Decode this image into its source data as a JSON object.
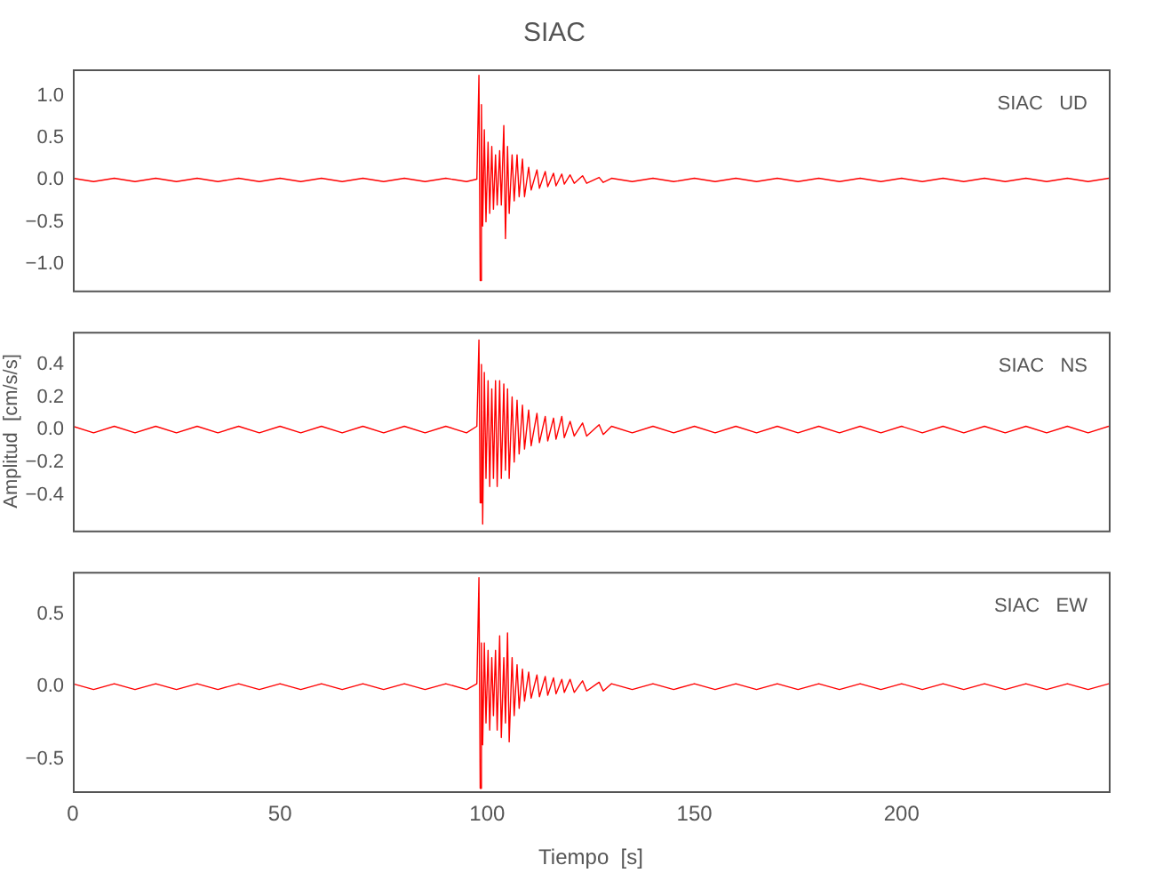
{
  "chart_data": [
    {
      "type": "line",
      "title": "SIAC",
      "annotations": [
        "SIAC   UD"
      ],
      "tick_labels": "y",
      "xlim": [
        0,
        250
      ],
      "xticks": [
        0,
        50,
        100,
        150,
        200
      ],
      "ylim": [
        -1.32,
        1.32
      ],
      "yticks": [
        {
          "value": -1,
          "label": "−1.0"
        },
        {
          "value": -0.5,
          "label": "−0.5"
        },
        {
          "value": 0,
          "label": "0.0"
        },
        {
          "value": 0.5,
          "label": "0.5"
        },
        {
          "value": 1,
          "label": "1.0"
        }
      ],
      "x": [
        0,
        5,
        10,
        15,
        20,
        25,
        30,
        35,
        40,
        45,
        50,
        55,
        60,
        65,
        70,
        75,
        80,
        85,
        90,
        95,
        97.5,
        98,
        98.3,
        98.6,
        98.9,
        99.3,
        99.7,
        100.2,
        100.6,
        101.1,
        101.5,
        102,
        102.4,
        103,
        103.4,
        104,
        104.4,
        104.9,
        105.3,
        106,
        106.5,
        107.2,
        107.7,
        108.5,
        109,
        110,
        110.6,
        112,
        112.6,
        114,
        114.6,
        116,
        116.6,
        118,
        118.6,
        120,
        121,
        123,
        124,
        127,
        128,
        130,
        135,
        140,
        145,
        150,
        155,
        160,
        165,
        170,
        175,
        180,
        185,
        190,
        195,
        200,
        205,
        210,
        215,
        220,
        225,
        230,
        235,
        240,
        245,
        250
      ],
      "series": [
        {
          "color": "#ff0000",
          "values": [
            0.02,
            -0.02,
            0.02,
            -0.02,
            0.02,
            -0.02,
            0.02,
            -0.02,
            0.02,
            -0.02,
            0.02,
            -0.02,
            0.02,
            -0.02,
            0.02,
            -0.02,
            0.02,
            -0.02,
            0.02,
            -0.02,
            0.01,
            1.25,
            -1.2,
            0.9,
            -0.55,
            0.6,
            -0.5,
            0.45,
            -0.4,
            0.4,
            -0.35,
            0.3,
            -0.3,
            0.35,
            -0.3,
            0.65,
            -0.7,
            0.4,
            -0.4,
            0.3,
            -0.25,
            0.3,
            -0.2,
            0.25,
            -0.2,
            0.15,
            -0.12,
            0.12,
            -0.1,
            0.1,
            -0.08,
            0.08,
            -0.07,
            0.07,
            -0.05,
            0.06,
            -0.04,
            0.05,
            -0.04,
            0.03,
            -0.03,
            0.02,
            -0.02,
            0.02,
            -0.02,
            0.02,
            -0.02,
            0.02,
            -0.02,
            0.02,
            -0.02,
            0.02,
            -0.02,
            0.02,
            -0.02,
            0.02,
            -0.02,
            0.02,
            -0.02,
            0.02,
            -0.02,
            0.02,
            -0.02,
            0.02,
            -0.02,
            0.02
          ]
        }
      ]
    },
    {
      "type": "line",
      "ylabel": "Amplitud  [cm/s/s]",
      "annotations": [
        "SIAC   NS"
      ],
      "tick_labels": "y",
      "xlim": [
        0,
        250
      ],
      "xticks": [
        0,
        50,
        100,
        150,
        200
      ],
      "ylim": [
        -0.62,
        0.6
      ],
      "yticks": [
        {
          "value": -0.4,
          "label": "−0.4"
        },
        {
          "value": -0.2,
          "label": "−0.2"
        },
        {
          "value": 0,
          "label": "0.0"
        },
        {
          "value": 0.2,
          "label": "0.2"
        },
        {
          "value": 0.4,
          "label": "0.4"
        }
      ],
      "x": [
        0,
        5,
        10,
        15,
        20,
        25,
        30,
        35,
        40,
        45,
        50,
        55,
        60,
        65,
        70,
        75,
        80,
        85,
        90,
        95,
        97.5,
        98,
        98.3,
        98.6,
        98.9,
        99.3,
        99.7,
        100.2,
        100.6,
        101.1,
        101.5,
        102,
        102.4,
        103,
        103.4,
        104,
        104.4,
        104.9,
        105.3,
        106,
        106.5,
        107.2,
        107.7,
        108.5,
        109,
        110,
        110.6,
        112,
        112.6,
        114,
        114.6,
        116,
        116.6,
        118,
        118.6,
        120,
        121,
        123,
        124,
        127,
        128,
        130,
        135,
        140,
        145,
        150,
        155,
        160,
        165,
        170,
        175,
        180,
        185,
        190,
        195,
        200,
        205,
        210,
        215,
        220,
        225,
        230,
        235,
        240,
        245,
        250
      ],
      "series": [
        {
          "color": "#ff0000",
          "values": [
            0.02,
            -0.02,
            0.02,
            -0.02,
            0.02,
            -0.02,
            0.02,
            -0.02,
            0.02,
            -0.02,
            0.02,
            -0.02,
            0.02,
            -0.02,
            0.02,
            -0.02,
            0.02,
            -0.02,
            0.02,
            -0.02,
            0.02,
            0.55,
            -0.45,
            0.4,
            -0.58,
            0.35,
            -0.3,
            0.3,
            -0.35,
            0.25,
            -0.3,
            0.3,
            -0.35,
            0.3,
            -0.3,
            0.28,
            -0.25,
            0.25,
            -0.3,
            0.2,
            -0.2,
            0.18,
            -0.15,
            0.15,
            -0.12,
            0.12,
            -0.1,
            0.1,
            -0.08,
            0.08,
            -0.07,
            0.07,
            -0.06,
            0.08,
            -0.05,
            0.05,
            -0.04,
            0.04,
            -0.04,
            0.03,
            -0.03,
            0.02,
            -0.02,
            0.02,
            -0.02,
            0.02,
            -0.02,
            0.02,
            -0.02,
            0.02,
            -0.02,
            0.02,
            -0.02,
            0.02,
            -0.02,
            0.02,
            -0.02,
            0.02,
            -0.02,
            0.02,
            -0.02,
            0.02,
            -0.02,
            0.02,
            -0.02,
            0.02
          ]
        }
      ]
    },
    {
      "type": "line",
      "xlabel": "Tiempo  [s]",
      "annotations": [
        "SIAC   EW"
      ],
      "xlim": [
        0,
        250
      ],
      "xticks": [
        0,
        50,
        100,
        150,
        200
      ],
      "ylim": [
        -0.72,
        0.79
      ],
      "yticks": [
        {
          "value": -0.5,
          "label": "−0.5"
        },
        {
          "value": 0,
          "label": "0.0"
        },
        {
          "value": 0.5,
          "label": "0.5"
        }
      ],
      "x": [
        0,
        5,
        10,
        15,
        20,
        25,
        30,
        35,
        40,
        45,
        50,
        55,
        60,
        65,
        70,
        75,
        80,
        85,
        90,
        95,
        97.5,
        98,
        98.3,
        98.6,
        98.9,
        99.3,
        99.7,
        100.2,
        100.6,
        101.1,
        101.5,
        102,
        102.4,
        103,
        103.4,
        104,
        104.4,
        104.9,
        105.3,
        106,
        106.5,
        107.2,
        107.7,
        108.5,
        109,
        110,
        110.6,
        112,
        112.6,
        114,
        114.6,
        116,
        116.6,
        118,
        118.6,
        120,
        121,
        123,
        124,
        127,
        128,
        130,
        135,
        140,
        145,
        150,
        155,
        160,
        165,
        170,
        175,
        180,
        185,
        190,
        195,
        200,
        205,
        210,
        215,
        220,
        225,
        230,
        235,
        240,
        245,
        250
      ],
      "series": [
        {
          "color": "#ff0000",
          "values": [
            0.02,
            -0.02,
            0.02,
            -0.02,
            0.02,
            -0.02,
            0.02,
            -0.02,
            0.02,
            -0.02,
            0.02,
            -0.02,
            0.02,
            -0.02,
            0.02,
            -0.02,
            0.02,
            -0.02,
            0.02,
            -0.02,
            0.02,
            0.75,
            -0.7,
            0.3,
            -0.4,
            0.3,
            -0.25,
            0.25,
            -0.3,
            0.2,
            -0.2,
            0.25,
            -0.3,
            0.35,
            -0.35,
            0.2,
            -0.25,
            0.37,
            -0.38,
            0.2,
            -0.2,
            0.15,
            -0.15,
            0.12,
            -0.1,
            0.1,
            -0.08,
            0.08,
            -0.07,
            0.07,
            -0.06,
            0.06,
            -0.05,
            0.05,
            -0.04,
            0.05,
            -0.04,
            0.04,
            -0.03,
            0.03,
            -0.03,
            0.02,
            -0.02,
            0.02,
            -0.02,
            0.02,
            -0.02,
            0.02,
            -0.02,
            0.02,
            -0.02,
            0.02,
            -0.02,
            0.02,
            -0.02,
            0.02,
            -0.02,
            0.02,
            -0.02,
            0.02,
            -0.02,
            0.02,
            -0.02,
            0.02,
            -0.02,
            0.02
          ]
        }
      ]
    }
  ]
}
